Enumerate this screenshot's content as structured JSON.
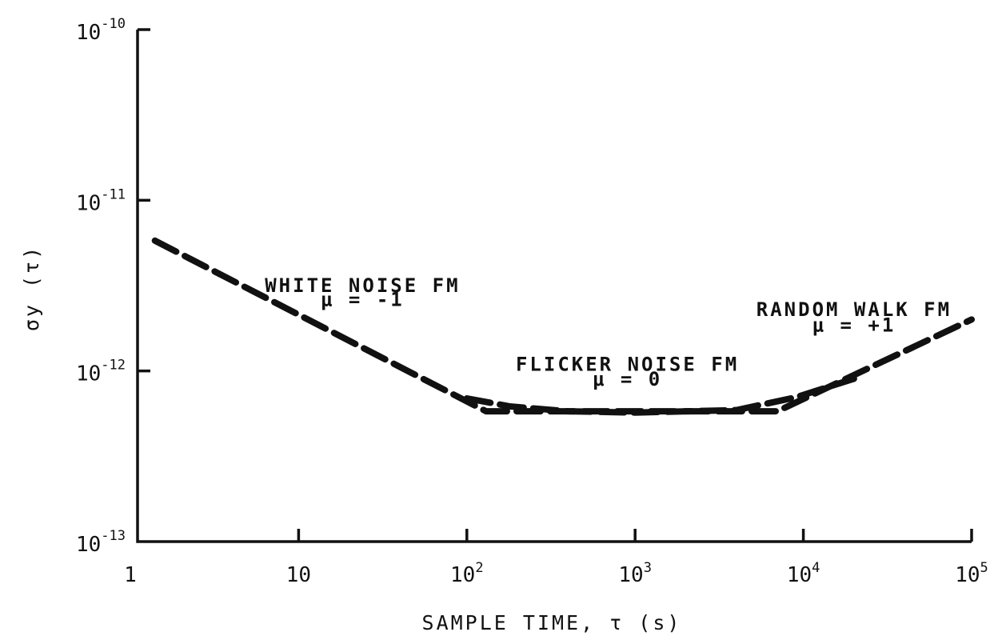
{
  "chart_data": {
    "type": "line",
    "xlabel": "SAMPLE TIME, τ (s)",
    "ylabel": "σy (τ)",
    "xscale": "log",
    "yscale": "log",
    "xlim": [
      1,
      100000
    ],
    "ylim": [
      1e-13,
      1e-10
    ],
    "grid": false,
    "x_ticks": [
      {
        "value": 1,
        "base": "1",
        "exp": ""
      },
      {
        "value": 10,
        "base": "10",
        "exp": ""
      },
      {
        "value": 100,
        "base": "10",
        "exp": "2"
      },
      {
        "value": 1000,
        "base": "10",
        "exp": "3"
      },
      {
        "value": 10000,
        "base": "10",
        "exp": "4"
      },
      {
        "value": 100000,
        "base": "10",
        "exp": "5"
      }
    ],
    "y_ticks": [
      {
        "value": 1e-10,
        "base": "10",
        "exp": "-10"
      },
      {
        "value": 1e-11,
        "base": "10",
        "exp": "-11"
      },
      {
        "value": 1e-12,
        "base": "10",
        "exp": "-12"
      },
      {
        "value": 1e-13,
        "base": "10",
        "exp": "-13"
      }
    ],
    "series": [
      {
        "values_xy": [
          [
            1.4,
            5.8e-12
          ],
          [
            130,
            5.8e-13
          ],
          [
            7000,
            5.8e-13
          ],
          [
            100000,
            2e-12
          ]
        ]
      },
      {
        "values_xy": [
          [
            100,
            6.9e-13
          ],
          [
            180,
            6.2e-13
          ],
          [
            400,
            5.8e-13
          ],
          [
            1000,
            5.7e-13
          ],
          [
            4000,
            5.9e-13
          ],
          [
            9000,
            7e-13
          ],
          [
            20000,
            9e-13
          ]
        ]
      }
    ],
    "annotations": [
      {
        "line1": "WHITE NOISE FM",
        "line2": "μ = -1",
        "x": 24,
        "y": 2.9e-12,
        "y2": 2.4e-12
      },
      {
        "line1": "FLICKER NOISE FM",
        "line2": "μ = 0",
        "x": 900,
        "y": 1e-12,
        "y2": 8.2e-13
      },
      {
        "line1": "RANDOM WALK FM",
        "line2": "μ = +1",
        "x": 20000,
        "y": 2.1e-12,
        "y2": 1.7e-12
      }
    ]
  }
}
